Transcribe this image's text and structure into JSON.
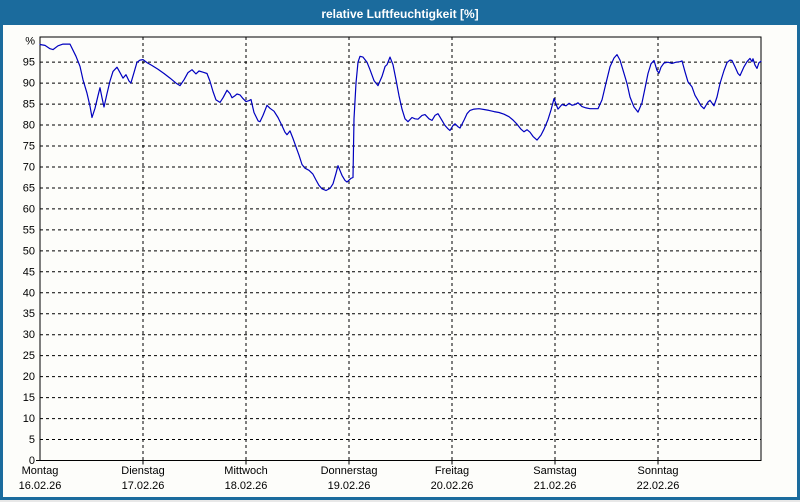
{
  "window": {
    "title": "relative Luftfeuchtigkeit [%]",
    "colors": {
      "frame": "#1b6b9d",
      "title_text": "#ffffff",
      "background": "#fdfdfa",
      "curve": "#0000bf",
      "grid": "#000000"
    }
  },
  "chart_data": {
    "type": "line",
    "title": "relative Luftfeuchtigkeit [%]",
    "ylabel": "%",
    "y_top_label": "%",
    "ylim": [
      0,
      101
    ],
    "x_total_days": 7,
    "grid": "dashed",
    "legend": "none",
    "y_ticks": [
      {
        "v": 100,
        "label": "%"
      },
      {
        "v": 95,
        "label": "95"
      },
      {
        "v": 90,
        "label": "90"
      },
      {
        "v": 85,
        "label": "85"
      },
      {
        "v": 80,
        "label": "80"
      },
      {
        "v": 75,
        "label": "75"
      },
      {
        "v": 70,
        "label": "70"
      },
      {
        "v": 65,
        "label": "65"
      },
      {
        "v": 60,
        "label": "60"
      },
      {
        "v": 55,
        "label": "55"
      },
      {
        "v": 50,
        "label": "50"
      },
      {
        "v": 45,
        "label": "45"
      },
      {
        "v": 40,
        "label": "40"
      },
      {
        "v": 35,
        "label": "35"
      },
      {
        "v": 30,
        "label": "30"
      },
      {
        "v": 25,
        "label": "25"
      },
      {
        "v": 20,
        "label": "20"
      },
      {
        "v": 15,
        "label": "15"
      },
      {
        "v": 10,
        "label": "10"
      },
      {
        "v": 5,
        "label": "5"
      },
      {
        "v": 0,
        "label": "0"
      }
    ],
    "days": [
      {
        "name": "Montag",
        "date": "16.02.26"
      },
      {
        "name": "Dienstag",
        "date": "17.02.26"
      },
      {
        "name": "Mittwoch",
        "date": "18.02.26"
      },
      {
        "name": "Donnerstag",
        "date": "19.02.26"
      },
      {
        "name": "Freitag",
        "date": "20.02.26"
      },
      {
        "name": "Samstag",
        "date": "21.02.26"
      },
      {
        "name": "Sonntag",
        "date": "22.02.26"
      }
    ],
    "series": [
      {
        "name": "relative Luftfeuchtigkeit",
        "unit": "%",
        "points": [
          [
            0.0,
            99.2
          ],
          [
            0.049,
            99.0
          ],
          [
            0.097,
            98.2
          ],
          [
            0.126,
            98.0
          ],
          [
            0.175,
            98.9
          ],
          [
            0.223,
            99.3
          ],
          [
            0.291,
            99.3
          ],
          [
            0.35,
            96.4
          ],
          [
            0.388,
            94.0
          ],
          [
            0.417,
            90.8
          ],
          [
            0.456,
            87.6
          ],
          [
            0.485,
            84.5
          ],
          [
            0.505,
            81.8
          ],
          [
            0.534,
            84.0
          ],
          [
            0.563,
            87.0
          ],
          [
            0.583,
            88.9
          ],
          [
            0.602,
            86.5
          ],
          [
            0.621,
            84.3
          ],
          [
            0.65,
            87.5
          ],
          [
            0.68,
            90.5
          ],
          [
            0.709,
            92.8
          ],
          [
            0.748,
            93.8
          ],
          [
            0.777,
            92.5
          ],
          [
            0.806,
            91.2
          ],
          [
            0.835,
            92.0
          ],
          [
            0.864,
            90.5
          ],
          [
            0.883,
            90.0
          ],
          [
            0.913,
            92.5
          ],
          [
            0.942,
            95.0
          ],
          [
            0.971,
            95.5
          ],
          [
            1.0,
            95.6
          ],
          [
            1.039,
            94.9
          ],
          [
            1.087,
            94.2
          ],
          [
            1.146,
            93.3
          ],
          [
            1.204,
            92.3
          ],
          [
            1.262,
            91.2
          ],
          [
            1.32,
            90.0
          ],
          [
            1.359,
            89.4
          ],
          [
            1.398,
            90.8
          ],
          [
            1.437,
            92.5
          ],
          [
            1.476,
            93.2
          ],
          [
            1.514,
            92.2
          ],
          [
            1.544,
            92.9
          ],
          [
            1.583,
            92.6
          ],
          [
            1.621,
            92.3
          ],
          [
            1.65,
            90.5
          ],
          [
            1.68,
            88.0
          ],
          [
            1.709,
            86.0
          ],
          [
            1.748,
            85.4
          ],
          [
            1.777,
            86.5
          ],
          [
            1.816,
            88.3
          ],
          [
            1.845,
            87.5
          ],
          [
            1.864,
            86.5
          ],
          [
            1.893,
            87.0
          ],
          [
            1.913,
            87.4
          ],
          [
            1.942,
            87.2
          ],
          [
            1.971,
            86.3
          ],
          [
            2.0,
            85.6
          ],
          [
            2.029,
            85.8
          ],
          [
            2.049,
            86.1
          ],
          [
            2.078,
            83.0
          ],
          [
            2.117,
            81.0
          ],
          [
            2.136,
            80.8
          ],
          [
            2.165,
            82.3
          ],
          [
            2.204,
            84.7
          ],
          [
            2.233,
            84.0
          ],
          [
            2.272,
            83.3
          ],
          [
            2.311,
            81.8
          ],
          [
            2.35,
            79.8
          ],
          [
            2.379,
            78.3
          ],
          [
            2.398,
            77.7
          ],
          [
            2.427,
            78.6
          ],
          [
            2.456,
            76.8
          ],
          [
            2.485,
            74.8
          ],
          [
            2.515,
            72.8
          ],
          [
            2.544,
            70.6
          ],
          [
            2.573,
            69.7
          ],
          [
            2.612,
            69.2
          ],
          [
            2.65,
            68.3
          ],
          [
            2.68,
            66.9
          ],
          [
            2.709,
            65.6
          ],
          [
            2.738,
            64.8
          ],
          [
            2.777,
            64.4
          ],
          [
            2.816,
            64.9
          ],
          [
            2.845,
            66.0
          ],
          [
            2.874,
            68.5
          ],
          [
            2.893,
            70.3
          ],
          [
            2.932,
            68.0
          ],
          [
            2.961,
            66.8
          ],
          [
            2.981,
            66.4
          ],
          [
            3.019,
            67.3
          ],
          [
            3.039,
            67.5
          ],
          [
            3.049,
            81.5
          ],
          [
            3.068,
            90.0
          ],
          [
            3.087,
            95.0
          ],
          [
            3.107,
            96.4
          ],
          [
            3.136,
            96.2
          ],
          [
            3.175,
            95.0
          ],
          [
            3.204,
            93.2
          ],
          [
            3.243,
            90.6
          ],
          [
            3.282,
            89.4
          ],
          [
            3.32,
            91.6
          ],
          [
            3.35,
            94.0
          ],
          [
            3.369,
            94.4
          ],
          [
            3.398,
            96.2
          ],
          [
            3.427,
            94.4
          ],
          [
            3.456,
            90.8
          ],
          [
            3.485,
            87.0
          ],
          [
            3.515,
            83.8
          ],
          [
            3.544,
            81.5
          ],
          [
            3.573,
            80.8
          ],
          [
            3.612,
            81.8
          ],
          [
            3.641,
            81.5
          ],
          [
            3.67,
            81.4
          ],
          [
            3.709,
            82.3
          ],
          [
            3.738,
            82.5
          ],
          [
            3.777,
            81.5
          ],
          [
            3.806,
            81.1
          ],
          [
            3.835,
            82.3
          ],
          [
            3.864,
            82.7
          ],
          [
            3.903,
            81.1
          ],
          [
            3.932,
            79.9
          ],
          [
            3.961,
            79.1
          ],
          [
            3.981,
            78.7
          ],
          [
            4.01,
            79.9
          ],
          [
            4.029,
            80.3
          ],
          [
            4.058,
            79.6
          ],
          [
            4.078,
            79.3
          ],
          [
            4.117,
            81.2
          ],
          [
            4.146,
            82.7
          ],
          [
            4.175,
            83.5
          ],
          [
            4.214,
            83.8
          ],
          [
            4.262,
            83.9
          ],
          [
            4.311,
            83.7
          ],
          [
            4.359,
            83.5
          ],
          [
            4.408,
            83.2
          ],
          [
            4.456,
            83.0
          ],
          [
            4.505,
            82.6
          ],
          [
            4.553,
            82.0
          ],
          [
            4.592,
            81.2
          ],
          [
            4.631,
            80.2
          ],
          [
            4.67,
            79.0
          ],
          [
            4.699,
            78.4
          ],
          [
            4.728,
            78.9
          ],
          [
            4.757,
            78.3
          ],
          [
            4.786,
            77.3
          ],
          [
            4.825,
            76.4
          ],
          [
            4.864,
            77.6
          ],
          [
            4.893,
            79.0
          ],
          [
            4.932,
            81.3
          ],
          [
            4.961,
            83.6
          ],
          [
            4.99,
            86.3
          ],
          [
            5.01,
            85.0
          ],
          [
            5.029,
            83.8
          ],
          [
            5.068,
            84.9
          ],
          [
            5.107,
            84.6
          ],
          [
            5.136,
            85.2
          ],
          [
            5.165,
            84.7
          ],
          [
            5.194,
            84.9
          ],
          [
            5.223,
            85.3
          ],
          [
            5.262,
            84.4
          ],
          [
            5.301,
            84.1
          ],
          [
            5.34,
            83.9
          ],
          [
            5.379,
            83.9
          ],
          [
            5.417,
            83.9
          ],
          [
            5.456,
            86.0
          ],
          [
            5.495,
            90.0
          ],
          [
            5.534,
            93.9
          ],
          [
            5.573,
            96.0
          ],
          [
            5.602,
            96.8
          ],
          [
            5.631,
            95.5
          ],
          [
            5.66,
            93.1
          ],
          [
            5.699,
            89.9
          ],
          [
            5.728,
            86.7
          ],
          [
            5.767,
            84.3
          ],
          [
            5.806,
            83.1
          ],
          [
            5.845,
            85.3
          ],
          [
            5.874,
            88.8
          ],
          [
            5.903,
            92.3
          ],
          [
            5.932,
            94.6
          ],
          [
            5.961,
            95.4
          ],
          [
            5.99,
            93.0
          ],
          [
            6.01,
            92.4
          ],
          [
            6.029,
            93.8
          ],
          [
            6.058,
            94.8
          ],
          [
            6.097,
            95.0
          ],
          [
            6.136,
            94.7
          ],
          [
            6.175,
            95.0
          ],
          [
            6.214,
            95.1
          ],
          [
            6.233,
            95.3
          ],
          [
            6.262,
            92.7
          ],
          [
            6.291,
            90.3
          ],
          [
            6.33,
            89.1
          ],
          [
            6.359,
            87.1
          ],
          [
            6.388,
            85.9
          ],
          [
            6.417,
            84.6
          ],
          [
            6.447,
            83.9
          ],
          [
            6.485,
            85.5
          ],
          [
            6.505,
            85.9
          ],
          [
            6.544,
            84.6
          ],
          [
            6.573,
            86.7
          ],
          [
            6.602,
            89.9
          ],
          [
            6.641,
            93.0
          ],
          [
            6.67,
            94.9
          ],
          [
            6.699,
            95.5
          ],
          [
            6.718,
            95.4
          ],
          [
            6.748,
            93.9
          ],
          [
            6.777,
            92.3
          ],
          [
            6.796,
            91.8
          ],
          [
            6.835,
            93.9
          ],
          [
            6.864,
            95.1
          ],
          [
            6.893,
            95.9
          ],
          [
            6.913,
            95.1
          ],
          [
            6.922,
            95.8
          ],
          [
            6.942,
            94.3
          ],
          [
            6.961,
            93.5
          ],
          [
            6.981,
            94.9
          ],
          [
            7.0,
            95.2
          ]
        ]
      }
    ]
  }
}
